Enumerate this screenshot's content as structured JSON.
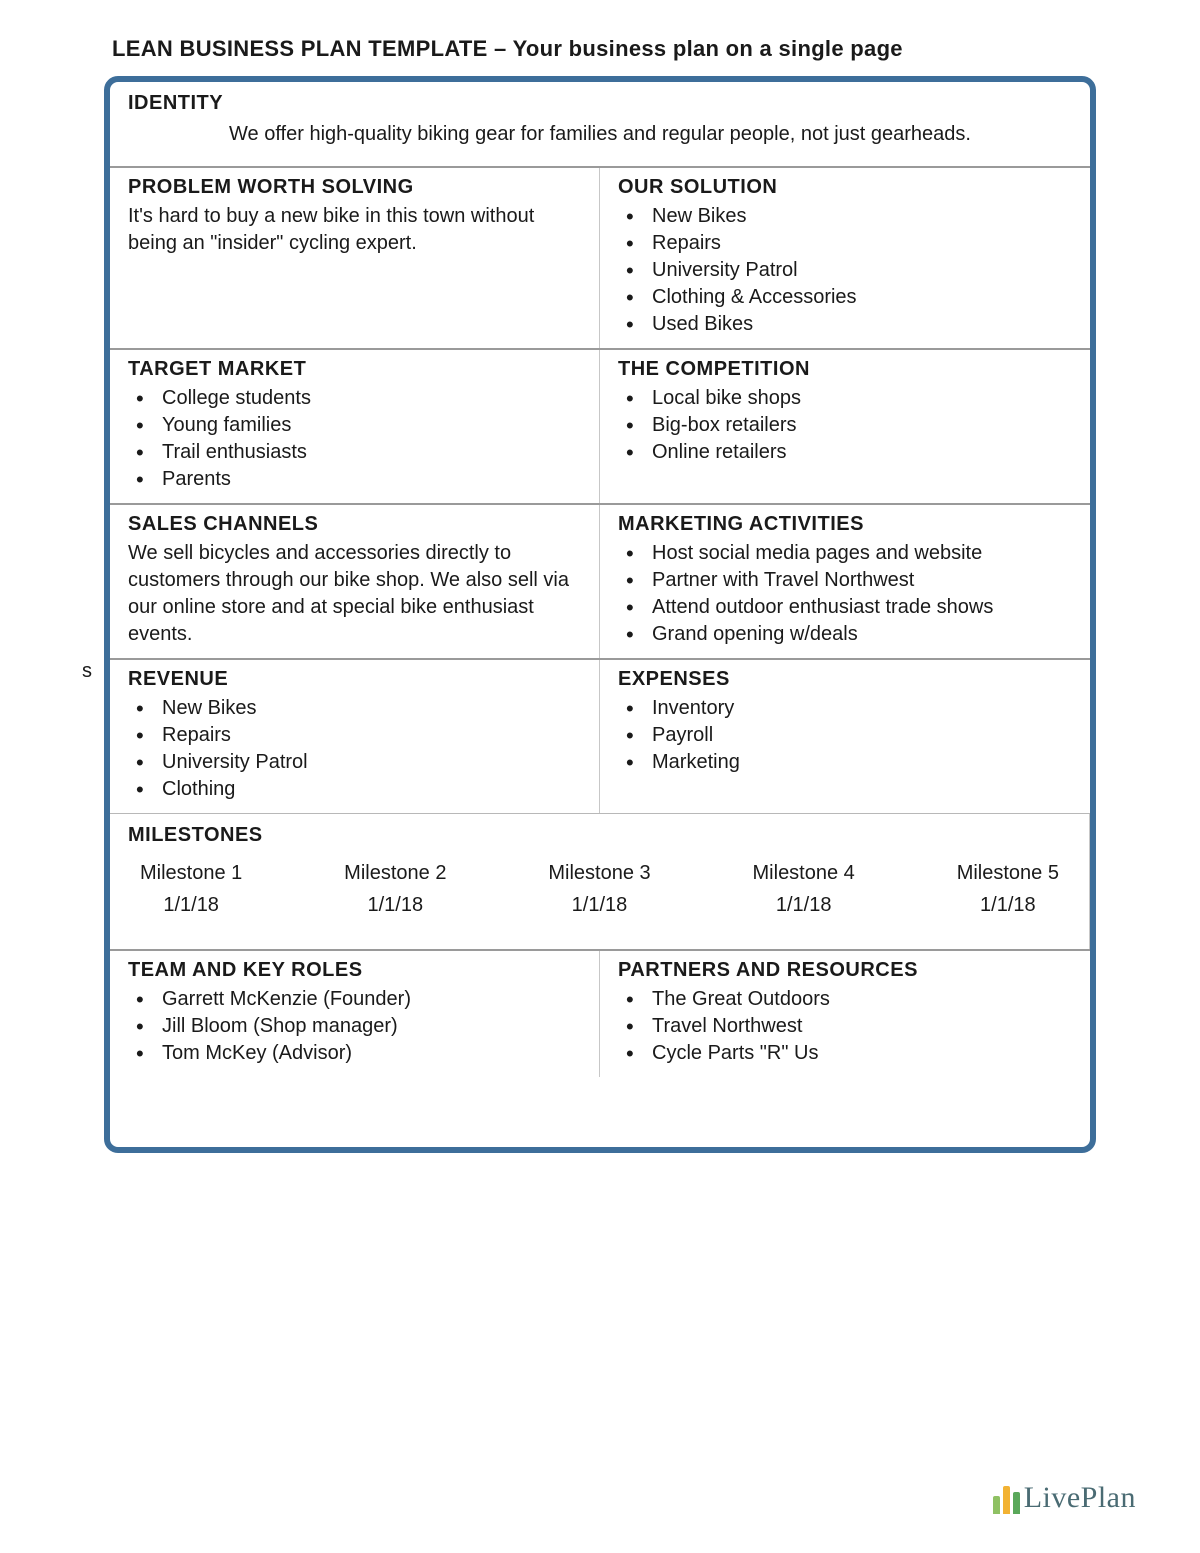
{
  "page_title": "LEAN BUSINESS PLAN TEMPLATE – Your business plan on a single page",
  "identity": {
    "heading": "IDENTITY",
    "text": "We offer high-quality biking gear for families and regular people, not just gearheads."
  },
  "problem": {
    "heading": "PROBLEM WORTH SOLVING",
    "text": "It's hard to buy a new bike in this town without being an \"insider\" cycling expert."
  },
  "solution": {
    "heading": "OUR SOLUTION",
    "items": [
      "New Bikes",
      "Repairs",
      "University Patrol",
      "Clothing & Accessories",
      "Used Bikes"
    ]
  },
  "target_market": {
    "heading": "TARGET MARKET",
    "items": [
      "College students",
      "Young families",
      "Trail enthusiasts",
      "Parents"
    ]
  },
  "competition": {
    "heading": "THE COMPETITION",
    "items": [
      "Local bike shops",
      "Big-box retailers",
      "Online retailers"
    ]
  },
  "sales_channels": {
    "heading": "SALES CHANNELS",
    "text": "We sell bicycles and accessories directly to customers through our bike shop. We also sell via our online store and at special bike enthusiast events."
  },
  "marketing": {
    "heading": "MARKETING ACTIVITIES",
    "items": [
      "Host social media pages and website",
      "Partner with Travel Northwest",
      "Attend outdoor enthusiast trade shows",
      "Grand opening w/deals"
    ]
  },
  "revenue": {
    "heading": "REVENUE",
    "items": [
      "New Bikes",
      "Repairs",
      "University Patrol",
      "Clothing"
    ]
  },
  "expenses": {
    "heading": "EXPENSES",
    "items": [
      "Inventory",
      "Payroll",
      "Marketing"
    ]
  },
  "milestones": {
    "heading": "MILESTONES",
    "items": [
      {
        "label": "Milestone 1",
        "date": "1/1/18"
      },
      {
        "label": "Milestone 2",
        "date": "1/1/18"
      },
      {
        "label": "Milestone 3",
        "date": "1/1/18"
      },
      {
        "label": "Milestone 4",
        "date": "1/1/18"
      },
      {
        "label": "Milestone 5",
        "date": "1/1/18"
      }
    ]
  },
  "team": {
    "heading": "TEAM AND KEY ROLES",
    "items": [
      "Garrett McKenzie (Founder)",
      "Jill Bloom (Shop manager)",
      "Tom McKey (Advisor)"
    ]
  },
  "partners": {
    "heading": "PARTNERS AND RESOURCES",
    "items": [
      "The Great Outdoors",
      "Travel Northwest",
      "Cycle Parts \"R\" Us"
    ]
  },
  "footer": {
    "logo_text": "LivePlan"
  },
  "stray_char": "s",
  "colors": {
    "border": "#3d6e9a",
    "rule": "#9a9a9a",
    "logo_bar1": "#8fc163",
    "logo_bar2": "#f2b233",
    "logo_bar3": "#5aa85a",
    "logo_text": "#4a6b73"
  }
}
